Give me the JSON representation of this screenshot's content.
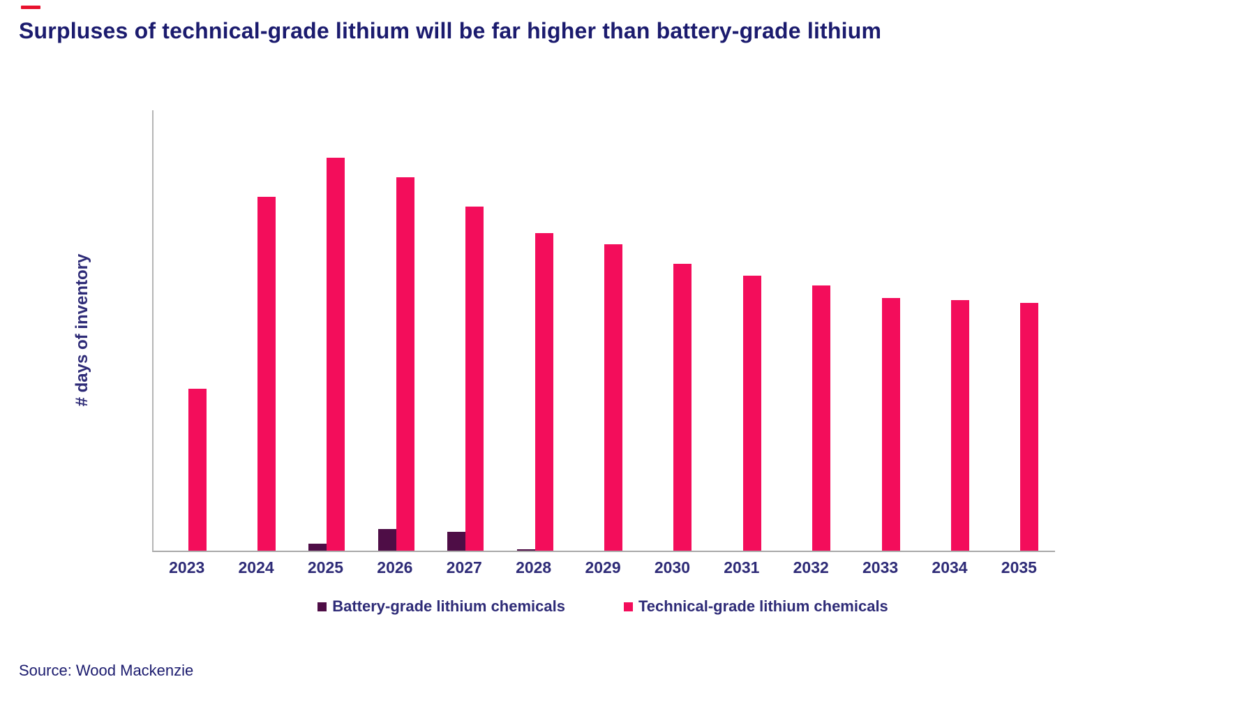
{
  "title": {
    "text": "Surpluses of technical-grade lithium will be far higher than battery-grade lithium"
  },
  "source": {
    "text": "Source: Wood Mackenzie"
  },
  "colors": {
    "title_navy": "#1b1b6e",
    "axis_text": "#2e2b77",
    "legend_text": "#2e2b77",
    "brand_red": "#e8112d",
    "battery_bar": "#4e0d46",
    "technical_bar": "#f30d5b"
  },
  "chart_data": {
    "type": "bar",
    "title": "Surpluses of technical-grade lithium will be far higher than battery-grade lithium",
    "xlabel": "",
    "ylabel": "# days of inventory",
    "categories": [
      "2023",
      "2024",
      "2025",
      "2026",
      "2027",
      "2028",
      "2029",
      "2030",
      "2031",
      "2032",
      "2033",
      "2034",
      "2035"
    ],
    "series": [
      {
        "name": "Battery-grade lithium chemicals",
        "color": "#4e0d46",
        "values": [
          0,
          0,
          1.8,
          5.5,
          4.8,
          0.4,
          0,
          0,
          0,
          0,
          0,
          0,
          0
        ]
      },
      {
        "name": "Technical-grade lithium chemicals",
        "color": "#f30d5b",
        "values": [
          41.2,
          90,
          100,
          95,
          87.5,
          80.8,
          78,
          73,
          70,
          67.5,
          64.3,
          63.7,
          63
        ]
      }
    ],
    "ylim": [
      0,
      112
    ],
    "y_ticks_shown": false,
    "grid": false,
    "legend_position": "bottom"
  }
}
